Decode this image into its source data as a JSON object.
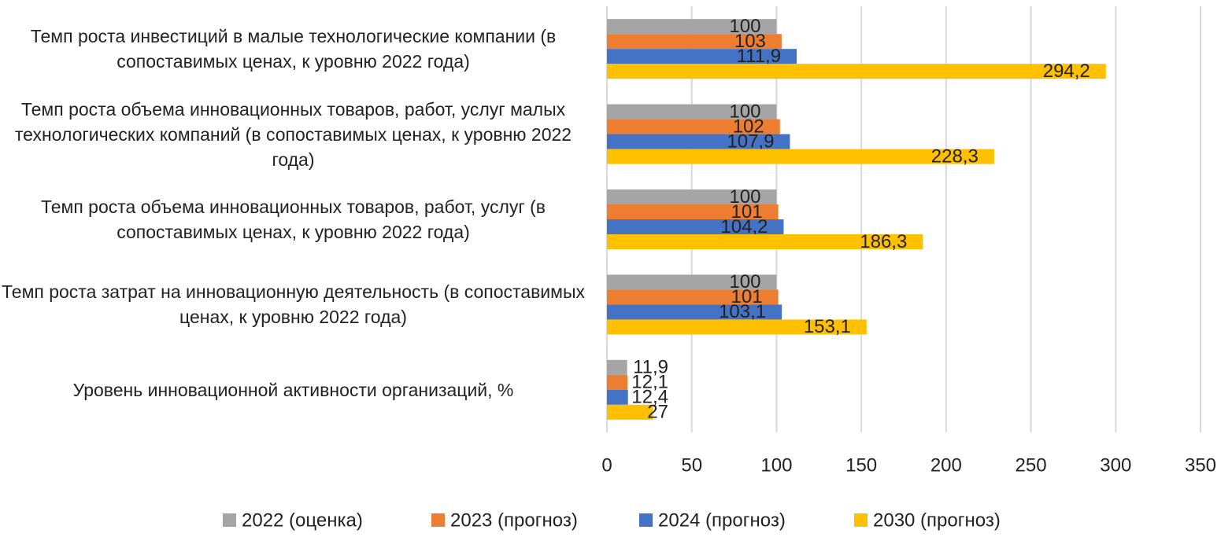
{
  "chart_data": {
    "type": "barh",
    "categories": [
      "Темп роста инвестиций в малые технологические компании (в сопоставимых ценах, к уровню 2022 года)",
      "Темп роста объема инновационных товаров, работ, услуг малых технологических компаний (в сопоставимых ценах, к уровню 2022 года)",
      "Темп роста объема инновационных товаров, работ, услуг (в сопоставимых ценах, к уровню 2022 года)",
      "Темп роста затрат на инновационную деятельность (в сопоставимых ценах, к уровню 2022 года)",
      "Уровень инновационной активности организаций, %"
    ],
    "series": [
      {
        "name": "2022 (оценка)",
        "color": "#a5a5a5",
        "values": [
          100,
          100,
          100,
          100,
          11.9
        ],
        "value_labels": [
          "100",
          "100",
          "100",
          "100",
          "11,9"
        ]
      },
      {
        "name": "2023 (прогноз)",
        "color": "#ed7d31",
        "values": [
          103,
          102,
          101,
          101,
          12.1
        ],
        "value_labels": [
          "103",
          "102",
          "101",
          "101",
          "12,1"
        ]
      },
      {
        "name": "2024 (прогноз)",
        "color": "#4472c4",
        "values": [
          111.9,
          107.9,
          104.2,
          103.1,
          12.4
        ],
        "value_labels": [
          "111,9",
          "107,9",
          "104,2",
          "103,1",
          "12,4"
        ]
      },
      {
        "name": "2030 (прогноз)",
        "color": "#ffc000",
        "values": [
          294.2,
          228.3,
          186.3,
          153.1,
          27
        ],
        "value_labels": [
          "294,2",
          "228,3",
          "186,3",
          "153,1",
          "27"
        ]
      }
    ],
    "xlim": [
      0,
      350
    ],
    "xticks": [
      0,
      50,
      100,
      150,
      200,
      250,
      300,
      350
    ],
    "grid": true,
    "legend": "bottom"
  }
}
